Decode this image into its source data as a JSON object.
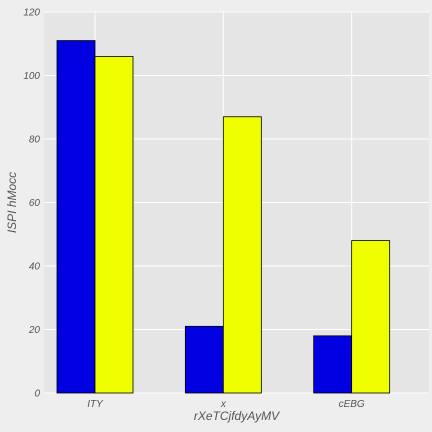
{
  "chart_data": {
    "type": "bar",
    "title": "",
    "xlabel": "rXeTCjfdyAyMV",
    "ylabel": "ISPI hMocc",
    "categories": [
      "ITY",
      "x",
      "cEBG"
    ],
    "series": [
      {
        "values": [
          111,
          21,
          18
        ],
        "color": "#0000e0"
      },
      {
        "values": [
          106,
          87,
          48
        ],
        "color": "#f0ff00"
      }
    ],
    "ylim": [
      0,
      120
    ],
    "yticks": [
      0,
      20,
      40,
      60,
      80,
      100,
      120
    ],
    "grid": true,
    "legend": "none"
  }
}
